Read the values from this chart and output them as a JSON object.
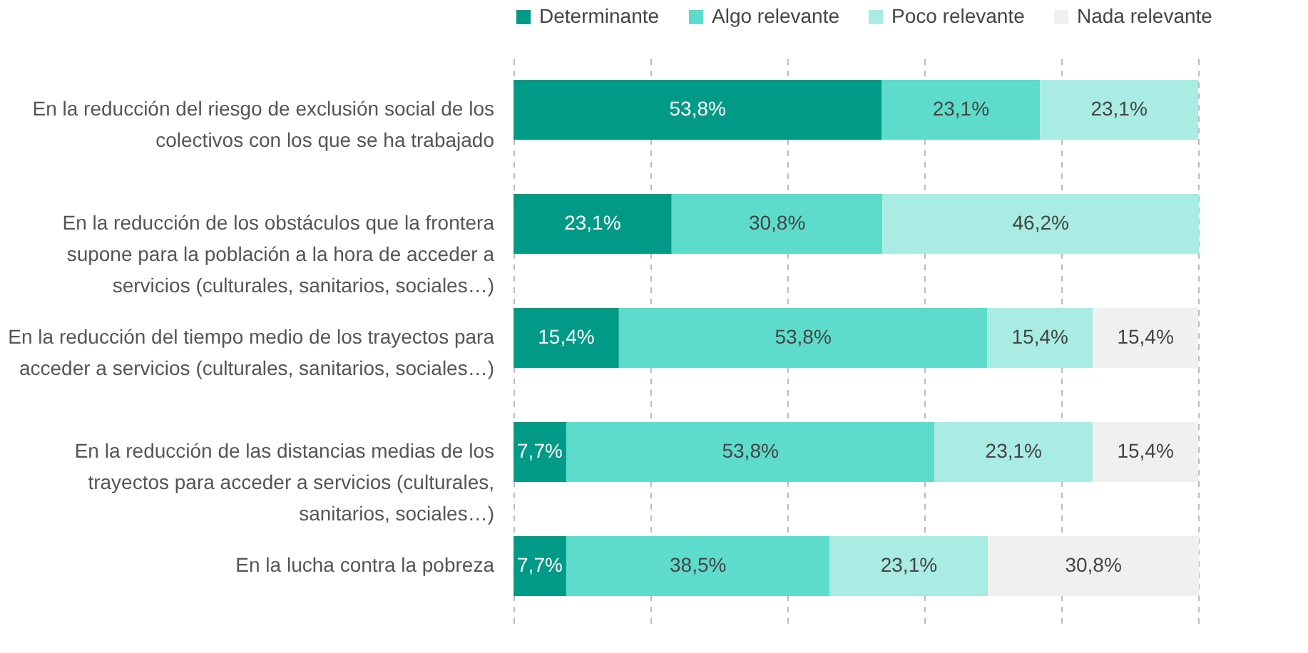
{
  "chart_data": {
    "type": "bar",
    "orientation": "horizontal",
    "stacked": true,
    "categories": [
      "En la reducción del riesgo de exclusión social de los colectivos con los que se ha trabajado",
      "En la reducción de los obstáculos que la frontera supone para la población a la hora de acceder a servicios (culturales, sanitarios, sociales…)",
      "En la reducción del tiempo medio de los trayectos para acceder a servicios (culturales, sanitarios, sociales…)",
      "En la reducción de las distancias medias de los trayectos para acceder a servicios (culturales, sanitarios, sociales…)",
      "En la lucha contra la pobreza"
    ],
    "series": [
      {
        "name": "Determinante",
        "color": "#009a87",
        "values": [
          53.8,
          23.1,
          15.4,
          7.7,
          7.7
        ],
        "value_labels": [
          "53,8%",
          "23,1%",
          "15,4%",
          "7,7%",
          "7,7%"
        ]
      },
      {
        "name": "Algo relevante",
        "color": "#5ddccc",
        "values": [
          23.1,
          30.8,
          53.8,
          53.8,
          38.5
        ],
        "value_labels": [
          "23,1%",
          "30,8%",
          "53,8%",
          "53,8%",
          "38,5%"
        ]
      },
      {
        "name": "Poco relevante",
        "color": "#a8ece3",
        "values": [
          23.1,
          46.2,
          15.4,
          23.1,
          23.1
        ],
        "value_labels": [
          "23,1%",
          "46,2%",
          "15,4%",
          "23,1%",
          "23,1%"
        ]
      },
      {
        "name": "Nada relevante",
        "color": "#f0f0f0",
        "values": [
          0,
          0,
          15.4,
          15.4,
          30.8
        ],
        "value_labels": [
          null,
          null,
          "15,4%",
          "15,4%",
          "30,8%"
        ]
      }
    ],
    "xlim": [
      0,
      100
    ],
    "xticks": [
      0,
      20,
      40,
      60,
      80,
      100
    ],
    "grid": "x",
    "tick_labels": "y",
    "legend": "top"
  }
}
